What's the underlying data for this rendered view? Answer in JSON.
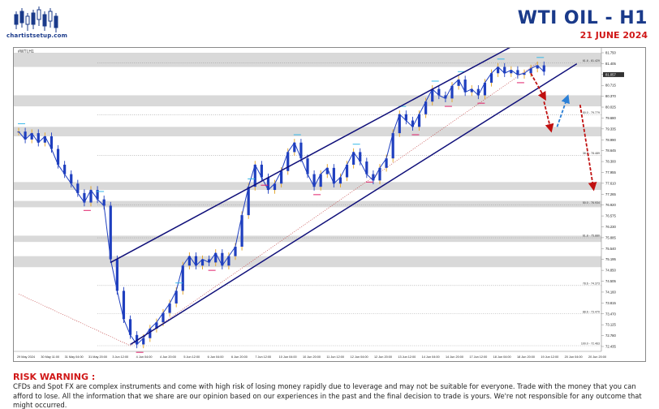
{
  "header": {
    "logo_text": "chartistsetup.com",
    "title": "WTI OIL  -  H1",
    "subtitle": "21 JUNE 2024"
  },
  "chart_panel": {
    "symbol_label": "#WTI,H1"
  },
  "risk": {
    "title": "RISK WARNING :",
    "body": "CFDs and Spot FX are complex instruments and come with high risk of losing money rapidly due to leverage and may not be suitable for everyone. Trade with the money that you can afford to lose. All the information that we share are our opinion based on our experiences in the past and the final decision to trade is yours. We're not responsible for any outcome that might occurred."
  },
  "colors": {
    "title": "#1a3a8a",
    "subtitle": "#d01818",
    "candle": "#1f3fbf",
    "wick_up": "#e0a020",
    "channel": "#10107a",
    "arrow_down": "#c01010",
    "arrow_up": "#2a7fd6",
    "zone": "#d9d9d9",
    "fib_line": "#9a9a9a",
    "swing_high_marker": "#35b8e8",
    "swing_low_marker": "#e0206a"
  },
  "chart_data": {
    "type": "line",
    "ylim": [
      72.28,
      81.75
    ],
    "y_ticks": [
      "81.750",
      "81.405",
      "81.060",
      "80.715",
      "80.370",
      "80.025",
      "79.680",
      "79.335",
      "78.990",
      "78.645",
      "78.300",
      "77.955",
      "77.610",
      "77.265",
      "76.920",
      "76.575",
      "76.230",
      "75.885",
      "75.540",
      "75.195",
      "74.850",
      "74.505",
      "74.160",
      "73.815",
      "73.470",
      "73.125",
      "72.780",
      "72.435"
    ],
    "x_labels": [
      "29 May 2024",
      "30 May 11:00",
      "31 May 04:00",
      "31 May 20:00",
      "3 Jun 12:00",
      "4 Jun 04:00",
      "4 Jun 20:00",
      "5 Jun 12:00",
      "6 Jun 04:00",
      "6 Jun 20:00",
      "7 Jun 12:00",
      "10 Jun 04:00",
      "10 Jun 20:00",
      "11 Jun 12:00",
      "12 Jun 04:00",
      "12 Jun 20:00",
      "13 Jun 12:00",
      "14 Jun 04:00",
      "14 Jun 20:00",
      "17 Jun 12:00",
      "18 Jun 04:00",
      "18 Jun 20:00",
      "19 Jun 12:00",
      "20 Jun 04:00",
      "20 Jun 20:00"
    ],
    "series": [
      {
        "x": [
          0,
          1,
          2,
          3,
          4,
          5,
          6,
          7,
          8,
          9,
          10,
          11,
          12,
          13,
          14,
          15,
          16,
          17,
          18,
          19,
          20,
          21,
          22,
          23,
          24,
          25,
          26,
          27,
          28,
          29,
          30,
          31,
          32,
          33,
          34,
          35,
          36,
          37,
          38,
          39,
          40,
          41,
          42,
          43,
          44,
          45,
          46,
          47,
          48,
          49,
          50,
          51,
          52,
          53,
          54,
          55,
          56,
          57,
          58,
          59,
          60,
          61,
          62,
          63,
          64,
          65,
          66,
          67,
          68,
          69,
          70,
          71,
          72,
          73,
          74,
          75,
          76,
          77,
          78,
          79,
          80
        ],
        "values": [
          79.25,
          79.0,
          79.2,
          78.9,
          79.1,
          78.7,
          78.2,
          77.9,
          77.6,
          77.3,
          77.0,
          77.4,
          77.1,
          76.9,
          75.2,
          74.2,
          73.3,
          72.8,
          72.5,
          72.7,
          73.0,
          73.2,
          73.5,
          73.8,
          74.2,
          75.0,
          75.3,
          75.0,
          75.2,
          75.1,
          75.4,
          75.0,
          75.3,
          75.6,
          76.6,
          77.5,
          78.2,
          77.8,
          77.4,
          77.6,
          78.0,
          78.6,
          78.9,
          78.4,
          77.9,
          77.5,
          77.9,
          78.1,
          77.6,
          77.8,
          78.2,
          78.6,
          78.3,
          77.9,
          77.7,
          78.1,
          78.4,
          79.2,
          79.8,
          79.6,
          79.4,
          79.8,
          80.2,
          80.6,
          80.4,
          80.3,
          80.7,
          80.9,
          80.5,
          80.6,
          80.4,
          80.8,
          81.1,
          81.3,
          81.1,
          81.2,
          81.05,
          81.1,
          81.25,
          81.35,
          81.15
        ]
      }
    ],
    "zones": [
      {
        "low": 81.3,
        "high": 81.75
      },
      {
        "low": 80.05,
        "high": 80.4
      },
      {
        "low": 79.1,
        "high": 79.4
      },
      {
        "low": 77.4,
        "high": 77.65
      },
      {
        "low": 76.85,
        "high": 77.05
      },
      {
        "low": 75.75,
        "high": 75.95
      },
      {
        "low": 74.95,
        "high": 75.3
      }
    ],
    "fib_levels": [
      {
        "label": "61.8 - 81.429",
        "value": 81.43
      },
      {
        "label": "50.0 - 79.779",
        "value": 79.78
      },
      {
        "label": "38.2 - 78.489",
        "value": 78.49
      },
      {
        "label": "50.0 - 76.934",
        "value": 76.93
      },
      {
        "label": "61.8 - 75.880",
        "value": 75.88
      },
      {
        "label": "78.6 - 74.373",
        "value": 74.37
      },
      {
        "label": "88.6 - 73.470",
        "value": 73.47
      },
      {
        "label": "100.0 - 72.463",
        "value": 72.46
      }
    ],
    "channel": {
      "upper": [
        {
          "x": 14,
          "y": 75.1
        },
        {
          "x": 80,
          "y": 82.5
        }
      ],
      "lower": [
        {
          "x": 17,
          "y": 72.5
        },
        {
          "x": 85,
          "y": 81.4
        }
      ]
    },
    "current_price": "81.057",
    "arrows": [
      {
        "direction": "down",
        "from": {
          "x": 78,
          "y": 81.1
        },
        "to": {
          "x": 80,
          "y": 80.35
        }
      },
      {
        "direction": "down",
        "from": {
          "x": 80,
          "y": 80.2
        },
        "to": {
          "x": 81,
          "y": 79.35
        }
      },
      {
        "direction": "up",
        "from": {
          "x": 82,
          "y": 79.4
        },
        "to": {
          "x": 83.5,
          "y": 80.3
        }
      },
      {
        "direction": "down",
        "from": {
          "x": 85.5,
          "y": 80.1
        },
        "to": {
          "x": 87.5,
          "y": 77.5
        }
      }
    ]
  }
}
